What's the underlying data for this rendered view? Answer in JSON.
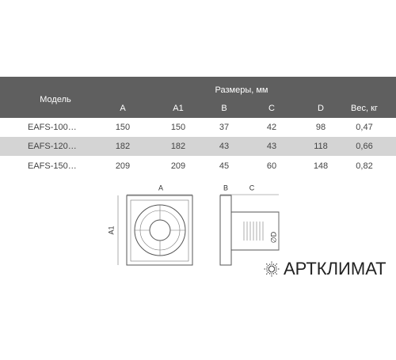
{
  "table": {
    "title": "Размеры, мм",
    "model_header": "Модель",
    "columns": [
      "A",
      "A1",
      "B",
      "C",
      "D",
      "Вес, кг"
    ],
    "rows": [
      [
        "EAFS-100…",
        "150",
        "150",
        "37",
        "42",
        "98",
        "0,47"
      ],
      [
        "EAFS-120…",
        "182",
        "182",
        "43",
        "43",
        "118",
        "0,66"
      ],
      [
        "EAFS-150…",
        "209",
        "209",
        "45",
        "60",
        "148",
        "0,82"
      ]
    ]
  },
  "diagram": {
    "labels": [
      "A",
      "A1",
      "B",
      "C",
      "∅D"
    ]
  },
  "logo": {
    "text": "АРТКЛИМАТ"
  }
}
